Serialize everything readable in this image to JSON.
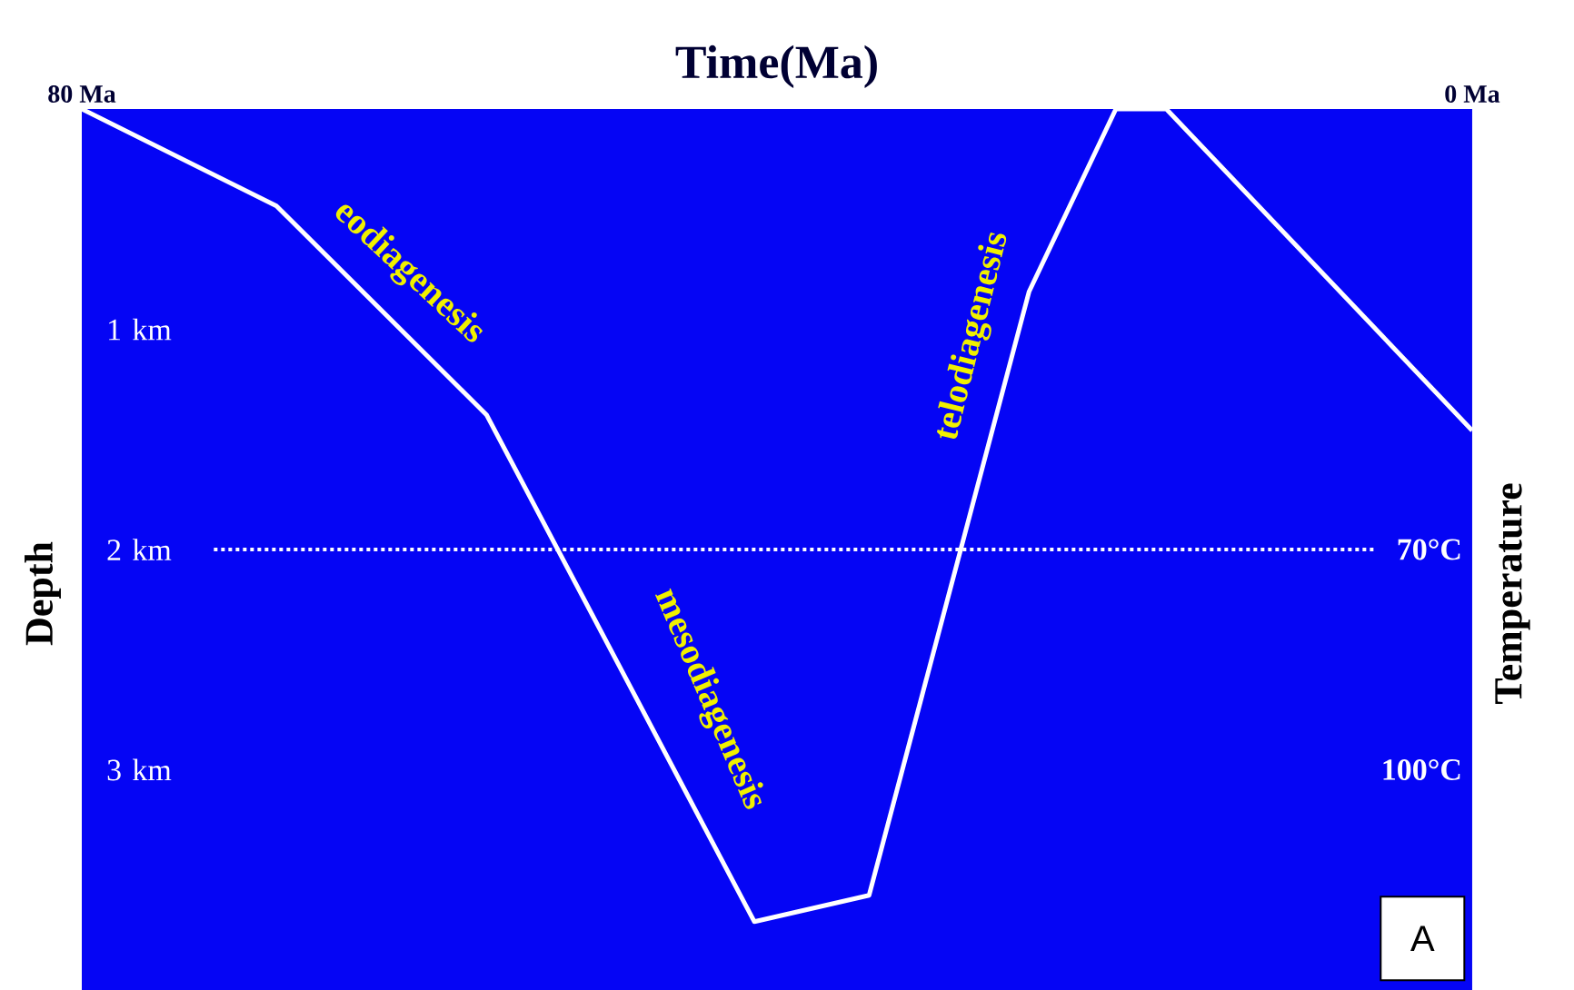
{
  "chart_data": {
    "type": "line",
    "xlabel": "Time(Ma)",
    "ylabel": "Depth",
    "y2label": "Temperature",
    "x": [
      80,
      68.8,
      56.7,
      41.3,
      34.7,
      25.5,
      20.5,
      17.6,
      0
    ],
    "series": [
      {
        "color": "#ffffff",
        "values": [
          0,
          0.44,
          1.39,
          3.69,
          3.57,
          0.83,
          0,
          0,
          1.46
        ]
      }
    ],
    "xlim": [
      80,
      0
    ],
    "xticks": [
      {
        "value": 80,
        "label": "80 Ma"
      },
      {
        "value": 0,
        "label": "0 Ma"
      }
    ],
    "ylim": [
      4,
      0
    ],
    "yticks": [
      {
        "value": 1,
        "label": "1 km"
      },
      {
        "value": 2,
        "label": "2 km"
      },
      {
        "value": 3,
        "label": "3 km"
      }
    ],
    "y2lim": [
      130,
      10
    ],
    "y2ticks": [
      {
        "value": 70,
        "label": "70°C"
      },
      {
        "value": 100,
        "label": "100°C"
      }
    ],
    "ref_lines": [
      {
        "axis": "y",
        "value": 2,
        "color": "#ffffff",
        "line_style": "dotted"
      }
    ],
    "annotations": [
      "eodiagenesis",
      "mesodiagenesis",
      "telodiagenesis",
      "A"
    ],
    "grid": false,
    "marker": "none",
    "line_style": "solid"
  }
}
